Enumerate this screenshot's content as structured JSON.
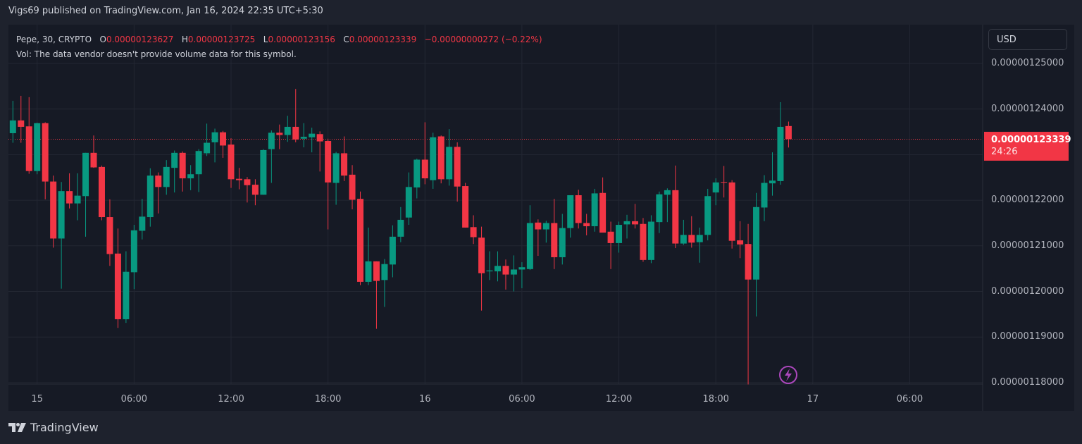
{
  "header": {
    "published": "Vigs69 published on TradingView.com, Jan 16, 2024 22:35 UTC+5:30"
  },
  "legend": {
    "symbol": "Pepe, 30, CRYPTO",
    "o_label": "O",
    "o": "0.00000123627",
    "h_label": "H",
    "h": "0.00000123725",
    "l_label": "L",
    "l": "0.00000123156",
    "c_label": "C",
    "c": "0.00000123339",
    "change": "−0.00000000272 (−0.22%)",
    "vol": "Vol: The data vendor doesn't provide volume data for this symbol."
  },
  "currency_button": "USD",
  "last_price": {
    "value": "0.00000123339",
    "countdown": "24:26"
  },
  "brand": "TradingView",
  "colors": {
    "up": "#089981",
    "down": "#f23645",
    "background": "#161a25",
    "grid": "#232733",
    "last_price": "#f23645",
    "lightning_icon": "#ab47bc"
  },
  "chart_data": {
    "type": "candlestick",
    "title": "Pepe, 30, CRYPTO",
    "interval_minutes": 30,
    "ylim": [
      1.18e-06,
      1.25e-06
    ],
    "grid": true,
    "y_ticks": [
      "0.00000125000",
      "0.00000124000",
      "0.00000122000",
      "0.00000121000",
      "0.00000120000",
      "0.00000119000",
      "0.00000118000"
    ],
    "y_tick_values": [
      1.25e-06,
      1.24e-06,
      1.23e-06,
      1.22e-06,
      1.21e-06,
      1.2e-06,
      1.19e-06,
      1.18e-06
    ],
    "x_ticks": [
      "15",
      "06:00",
      "12:00",
      "18:00",
      "16",
      "06:00",
      "12:00",
      "18:00",
      "17",
      "06:00"
    ],
    "candles_ohlc": [
      [
        1.2347e-06,
        1.2418e-06,
        1.2326e-06,
        1.2375e-06
      ],
      [
        1.2375e-06,
        1.2429e-06,
        1.2326e-06,
        1.2361e-06
      ],
      [
        1.2362e-06,
        1.2426e-06,
        1.2258e-06,
        1.2264e-06
      ],
      [
        1.2264e-06,
        1.237e-06,
        1.2257e-06,
        1.2369e-06
      ],
      [
        1.2369e-06,
        1.2371e-06,
        1.2202e-06,
        1.2241e-06
      ],
      [
        1.2241e-06,
        1.2254e-06,
        1.2096e-06,
        1.2116e-06
      ],
      [
        1.2116e-06,
        1.224e-06,
        1.2006e-06,
        1.222e-06
      ],
      [
        1.222e-06,
        1.2259e-06,
        1.2182e-06,
        1.2193e-06
      ],
      [
        1.2193e-06,
        1.2259e-06,
        1.2156e-06,
        1.221e-06
      ],
      [
        1.2209e-06,
        1.2304e-06,
        1.212e-06,
        1.2304e-06
      ],
      [
        1.2304e-06,
        1.2342e-06,
        1.2271e-06,
        1.2272e-06
      ],
      [
        1.2273e-06,
        1.2276e-06,
        1.2156e-06,
        1.2163e-06
      ],
      [
        1.2163e-06,
        1.2202e-06,
        1.2056e-06,
        1.2082e-06
      ],
      [
        1.2083e-06,
        1.2138e-06,
        1.192e-06,
        1.1939e-06
      ],
      [
        1.1939e-06,
        1.2088e-06,
        1.1931e-06,
        1.2043e-06
      ],
      [
        1.2042e-06,
        1.2146e-06,
        1.2005e-06,
        1.2134e-06
      ],
      [
        1.2133e-06,
        1.2203e-06,
        1.2114e-06,
        1.2164e-06
      ],
      [
        1.2163e-06,
        1.227e-06,
        1.2142e-06,
        1.2254e-06
      ],
      [
        1.2254e-06,
        1.2261e-06,
        1.2171e-06,
        1.2229e-06
      ],
      [
        1.2229e-06,
        1.2288e-06,
        1.2212e-06,
        1.2273e-06
      ],
      [
        1.2271e-06,
        1.2309e-06,
        1.2217e-06,
        1.2304e-06
      ],
      [
        1.2304e-06,
        1.2307e-06,
        1.2219e-06,
        1.2248e-06
      ],
      [
        1.2248e-06,
        1.2277e-06,
        1.2222e-06,
        1.2257e-06
      ],
      [
        1.2257e-06,
        1.2312e-06,
        1.2218e-06,
        1.2308e-06
      ],
      [
        1.2303e-06,
        1.2368e-06,
        1.2297e-06,
        1.2326e-06
      ],
      [
        1.2327e-06,
        1.2357e-06,
        1.2283e-06,
        1.2349e-06
      ],
      [
        1.2349e-06,
        1.2352e-06,
        1.2293e-06,
        1.232e-06
      ],
      [
        1.2322e-06,
        1.2336e-06,
        1.2227e-06,
        1.2246e-06
      ],
      [
        1.2247e-06,
        1.2271e-06,
        1.2224e-06,
        1.2244e-06
      ],
      [
        1.2246e-06,
        1.2251e-06,
        1.2195e-06,
        1.2233e-06
      ],
      [
        1.2234e-06,
        1.2246e-06,
        1.2189e-06,
        1.2212e-06
      ],
      [
        1.2212e-06,
        1.2312e-06,
        1.2212e-06,
        1.231e-06
      ],
      [
        1.2312e-06,
        1.2353e-06,
        1.2238e-06,
        1.2348e-06
      ],
      [
        1.2348e-06,
        1.2366e-06,
        1.2312e-06,
        1.2343e-06
      ],
      [
        1.2343e-06,
        1.2385e-06,
        1.2328e-06,
        1.2361e-06
      ],
      [
        1.2361e-06,
        1.2444e-06,
        1.2327e-06,
        1.2333e-06
      ],
      [
        1.2335e-06,
        1.2369e-06,
        1.2316e-06,
        1.2339e-06
      ],
      [
        1.2338e-06,
        1.2359e-06,
        1.2305e-06,
        1.2346e-06
      ],
      [
        1.2345e-06,
        1.2351e-06,
        1.2263e-06,
        1.2329e-06
      ],
      [
        1.233e-06,
        1.2335e-06,
        1.2136e-06,
        1.2239e-06
      ],
      [
        1.2238e-06,
        1.2306e-06,
        1.219e-06,
        1.2303e-06
      ],
      [
        1.2303e-06,
        1.234e-06,
        1.2242e-06,
        1.2254e-06
      ],
      [
        1.2256e-06,
        1.2277e-06,
        1.218e-06,
        1.2201e-06
      ],
      [
        1.2203e-06,
        1.2219e-06,
        1.2014e-06,
        1.2021e-06
      ],
      [
        1.2021e-06,
        1.214e-06,
        1.2014e-06,
        1.2066e-06
      ],
      [
        1.2066e-06,
        1.2066e-06,
        1.1918e-06,
        1.2023e-06
      ],
      [
        1.2025e-06,
        1.2071e-06,
        1.1966e-06,
        1.206e-06
      ],
      [
        1.2059e-06,
        1.2145e-06,
        1.2031e-06,
        1.212e-06
      ],
      [
        1.212e-06,
        1.2185e-06,
        1.2108e-06,
        1.2157e-06
      ],
      [
        1.2162e-06,
        1.2261e-06,
        1.2146e-06,
        1.2229e-06
      ],
      [
        1.2228e-06,
        1.2291e-06,
        1.2204e-06,
        1.2289e-06
      ],
      [
        1.2289e-06,
        1.2371e-06,
        1.2235e-06,
        1.2248e-06
      ],
      [
        1.2244e-06,
        1.2348e-06,
        1.2225e-06,
        1.2338e-06
      ],
      [
        1.234e-06,
        1.2342e-06,
        1.2237e-06,
        1.2246e-06
      ],
      [
        1.2246e-06,
        1.2356e-06,
        1.2232e-06,
        1.2317e-06
      ],
      [
        1.2317e-06,
        1.2327e-06,
        1.2197e-06,
        1.223e-06
      ],
      [
        1.2231e-06,
        1.2238e-06,
        1.214e-06,
        1.214e-06
      ],
      [
        1.2141e-06,
        1.2167e-06,
        1.2104e-06,
        1.2119e-06
      ],
      [
        1.2118e-06,
        1.2142e-06,
        1.1958e-06,
        1.204e-06
      ],
      [
        1.2044e-06,
        1.2088e-06,
        1.2025e-06,
        1.2046e-06
      ],
      [
        1.2044e-06,
        1.2088e-06,
        1.2022e-06,
        1.2056e-06
      ],
      [
        1.2056e-06,
        1.207e-06,
        1.2004e-06,
        1.2037e-06
      ],
      [
        1.2037e-06,
        1.2079e-06,
        1.2e-06,
        1.2048e-06
      ],
      [
        1.2048e-06,
        1.2064e-06,
        1.2007e-06,
        1.2053e-06
      ],
      [
        1.2049e-06,
        1.2189e-06,
        1.2047e-06,
        1.215e-06
      ],
      [
        1.2151e-06,
        1.2158e-06,
        1.2078e-06,
        1.2136e-06
      ],
      [
        1.2136e-06,
        1.2155e-06,
        1.2107e-06,
        1.215e-06
      ],
      [
        1.215e-06,
        1.2203e-06,
        1.2049e-06,
        1.2075e-06
      ],
      [
        1.2075e-06,
        1.217e-06,
        1.2059e-06,
        1.2139e-06
      ],
      [
        1.2139e-06,
        1.2211e-06,
        1.2118e-06,
        1.2211e-06
      ],
      [
        1.2211e-06,
        1.2223e-06,
        1.2138e-06,
        1.215e-06
      ],
      [
        1.215e-06,
        1.217e-06,
        1.2123e-06,
        1.2143e-06
      ],
      [
        1.2143e-06,
        1.2225e-06,
        1.2131e-06,
        1.2215e-06
      ],
      [
        1.2216e-06,
        1.225e-06,
        1.2129e-06,
        1.2129e-06
      ],
      [
        1.2131e-06,
        1.2153e-06,
        1.2049e-06,
        1.2106e-06
      ],
      [
        1.2106e-06,
        1.2153e-06,
        1.2085e-06,
        1.2146e-06
      ],
      [
        1.2147e-06,
        1.2168e-06,
        1.2116e-06,
        1.2154e-06
      ],
      [
        1.2154e-06,
        1.2192e-06,
        1.2138e-06,
        1.2147e-06
      ],
      [
        1.2148e-06,
        1.2161e-06,
        1.2065e-06,
        1.2069e-06
      ],
      [
        1.2069e-06,
        1.2167e-06,
        1.2062e-06,
        1.2153e-06
      ],
      [
        1.2152e-06,
        1.2219e-06,
        1.2128e-06,
        1.2213e-06
      ],
      [
        1.2212e-06,
        1.2226e-06,
        1.2152e-06,
        1.2222e-06
      ],
      [
        1.2222e-06,
        1.2276e-06,
        1.2095e-06,
        1.2105e-06
      ],
      [
        1.2105e-06,
        1.2157e-06,
        1.2102e-06,
        1.2124e-06
      ],
      [
        1.2124e-06,
        1.2165e-06,
        1.2096e-06,
        1.2107e-06
      ],
      [
        1.2108e-06,
        1.214e-06,
        1.2063e-06,
        1.2124e-06
      ],
      [
        1.2124e-06,
        1.2225e-06,
        1.2112e-06,
        1.2209e-06
      ],
      [
        1.2217e-06,
        1.2248e-06,
        1.2189e-06,
        1.2239e-06
      ],
      [
        1.224e-06,
        1.2275e-06,
        1.2206e-06,
        1.2239e-06
      ],
      [
        1.2239e-06,
        1.2244e-06,
        1.2094e-06,
        1.2111e-06
      ],
      [
        1.2112e-06,
        1.2154e-06,
        1.2073e-06,
        1.2103e-06
      ],
      [
        1.2104e-06,
        1.2148e-06,
        1.1796e-06,
        1.2026e-06
      ],
      [
        1.2026e-06,
        1.2216e-06,
        1.1945e-06,
        1.2185e-06
      ],
      [
        1.2184e-06,
        1.2255e-06,
        1.2154e-06,
        1.2238e-06
      ],
      [
        1.2237e-06,
        1.2305e-06,
        1.221e-06,
        1.2243e-06
      ],
      [
        1.2242e-06,
        1.2415e-06,
        1.2234e-06,
        1.2361e-06
      ],
      [
        1.23627e-06,
        1.23725e-06,
        1.23156e-06,
        1.23339e-06
      ]
    ]
  }
}
